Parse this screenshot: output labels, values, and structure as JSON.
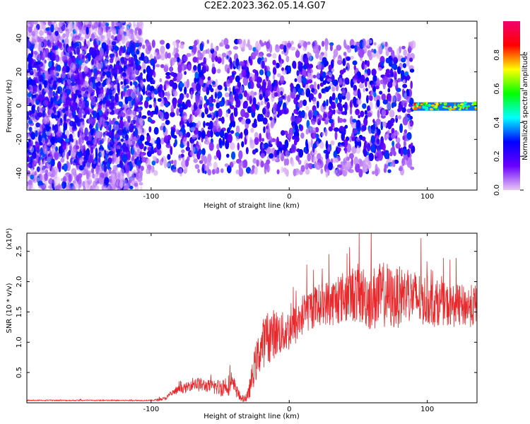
{
  "title": "C2E2.2023.362.05.14.G07",
  "chart_data": [
    {
      "type": "heatmap",
      "xlabel": "Height of straight line (km)",
      "ylabel": "Frequency (Hz)",
      "xlim": [
        -190,
        136
      ],
      "ylim": [
        -50,
        50
      ],
      "x_ticks": [
        -100,
        0,
        100
      ],
      "x_tick_labels": [
        "-100",
        "0",
        "100"
      ],
      "y_ticks": [
        -40,
        -20,
        0,
        20,
        40
      ],
      "y_tick_labels": [
        "-40",
        "-20",
        "0",
        "20",
        "40"
      ],
      "grid": false,
      "colormap": "rainbow",
      "colorbar": {
        "label": "Normalized spectral amplitude",
        "range": [
          0,
          1
        ],
        "ticks": [
          0.0,
          0.2,
          0.4,
          0.6,
          0.8
        ],
        "tick_labels": [
          "0.0",
          "0.2",
          "0.4",
          "0.6",
          "0.8"
        ],
        "stops": [
          "#e9c8f2",
          "#6a00ff",
          "#0000ff",
          "#00ffff",
          "#00ff00",
          "#ffff00",
          "#ff0000",
          "#f0006e"
        ]
      },
      "regions": [
        {
          "x_range": [
            -190,
            -107
          ],
          "freq_range": [
            -50,
            50
          ],
          "typical_amplitude": 0.15
        },
        {
          "x_range": [
            -107,
            90
          ],
          "freq_range": [
            -40,
            38
          ],
          "typical_amplitude": 0.15
        },
        {
          "x_range": [
            90,
            136
          ],
          "freq_range": [
            -3,
            2
          ],
          "typical_amplitude": 0.7
        }
      ]
    },
    {
      "type": "line",
      "xlabel": "Height of straight line (km)",
      "ylabel": "SNR (10 * v/v)",
      "y_multiplier": "(x10⁴)",
      "xlim": [
        -190,
        136
      ],
      "ylim": [
        0,
        2.8
      ],
      "x_ticks": [
        -100,
        0,
        100
      ],
      "x_tick_labels": [
        "-100",
        "0",
        "100"
      ],
      "y_ticks": [
        0.5,
        1.0,
        1.5,
        2.0,
        2.5
      ],
      "y_tick_labels": [
        "0.5",
        "1.0",
        "1.5",
        "2.0",
        "2.5"
      ],
      "grid": false,
      "color": "#e8282b",
      "envelope_x": [
        -190,
        -120,
        -100,
        -95,
        -90,
        -85,
        -80,
        -75,
        -70,
        -65,
        -60,
        -55,
        -50,
        -45,
        -40,
        -35,
        -30,
        -25,
        -20,
        -15,
        -10,
        -5,
        0,
        5,
        10,
        15,
        20,
        25,
        30,
        35,
        40,
        45,
        50,
        55,
        60,
        65,
        70,
        75,
        80,
        85,
        90,
        95,
        100,
        105,
        110,
        115,
        120,
        125,
        130,
        136
      ],
      "envelope_y": [
        0.04,
        0.04,
        0.04,
        0.05,
        0.07,
        0.15,
        0.22,
        0.24,
        0.32,
        0.3,
        0.28,
        0.26,
        0.25,
        0.3,
        0.28,
        0.06,
        0.1,
        0.6,
        0.95,
        1.1,
        1.15,
        1.15,
        1.2,
        1.3,
        1.45,
        1.55,
        1.6,
        1.65,
        1.65,
        1.7,
        1.75,
        1.8,
        1.8,
        1.75,
        1.7,
        1.75,
        1.8,
        1.7,
        1.75,
        1.8,
        1.75,
        1.7,
        1.7,
        1.65,
        1.65,
        1.6,
        1.6,
        1.6,
        1.6,
        1.6
      ],
      "noise_amplitude": [
        0.01,
        0.01,
        0.01,
        0.02,
        0.03,
        0.05,
        0.06,
        0.08,
        0.1,
        0.12,
        0.1,
        0.12,
        0.15,
        0.18,
        0.15,
        0.04,
        0.1,
        0.3,
        0.4,
        0.45,
        0.4,
        0.35,
        0.35,
        0.35,
        0.35,
        0.35,
        0.35,
        0.35,
        0.4,
        0.4,
        0.45,
        0.45,
        0.5,
        0.5,
        0.55,
        0.55,
        0.55,
        0.5,
        0.5,
        0.45,
        0.45,
        0.45,
        0.4,
        0.4,
        0.35,
        0.35,
        0.35,
        0.35,
        0.35,
        0.35
      ]
    }
  ]
}
